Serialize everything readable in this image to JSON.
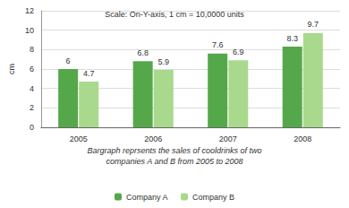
{
  "chart_data": {
    "type": "bar",
    "title": "Scale: On-Y-axis, 1 cm = 10,0000 units",
    "y_label": "cm",
    "annotations": [
      "Bargraph reprsents the sales of cooldrinks of two\ncompanies A and B from 2005 to 2008"
    ],
    "categories": [
      "2005",
      "2006",
      "2007",
      "2008"
    ],
    "series": [
      {
        "name": "Company A",
        "color": "#55a84a",
        "values": [
          6,
          6.8,
          7.6,
          8.3
        ]
      },
      {
        "name": "Company B",
        "color": "#a9d98c",
        "values": [
          4.7,
          5.9,
          6.9,
          9.7
        ]
      }
    ],
    "ylim": [
      0,
      12
    ],
    "yticks": [
      0,
      2,
      4,
      6,
      8,
      10,
      12
    ],
    "grid": true,
    "data_labels": true,
    "legend": "bottom"
  }
}
